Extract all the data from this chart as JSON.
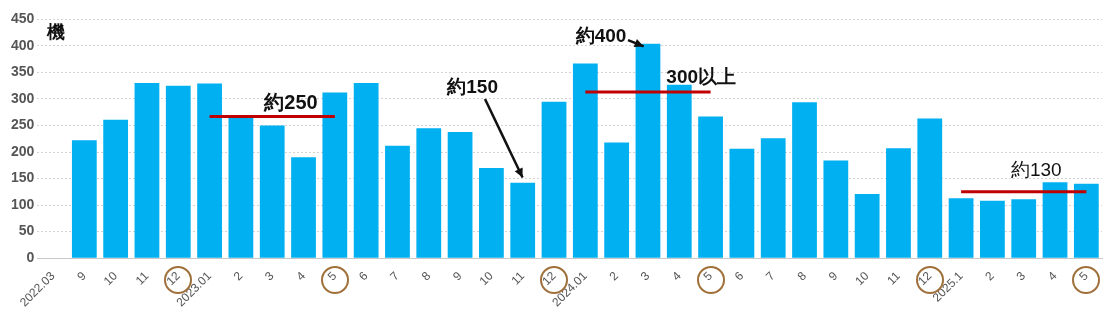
{
  "chart_data": {
    "type": "bar",
    "ylabel": "機",
    "categories": [
      "2022.03",
      "9",
      "10",
      "11",
      "12",
      "2023.01",
      "2",
      "3",
      "4",
      "5",
      "6",
      "7",
      "8",
      "9",
      "10",
      "11",
      "12",
      "2024.01",
      "2",
      "3",
      "4",
      "5",
      "6",
      "7",
      "8",
      "9",
      "10",
      "11",
      "12",
      "2025.1",
      "2",
      "3",
      "4",
      "5"
    ],
    "series": [
      {
        "color": "#00b0f0",
        "values": [
          null,
          222,
          261,
          330,
          325,
          329,
          267,
          250,
          190,
          312,
          330,
          212,
          245,
          238,
          170,
          142,
          295,
          367,
          218,
          404,
          327,
          267,
          206,
          226,
          294,
          184,
          121,
          207,
          263,
          113,
          108,
          111,
          143,
          140
        ]
      },
      {
        "type": "line",
        "color": "#c00000",
        "values": [
          null,
          null,
          null,
          null,
          null,
          267,
          267,
          267,
          267,
          267,
          null,
          null,
          null,
          null,
          null,
          null,
          null,
          null,
          null,
          null,
          null,
          null,
          null,
          null,
          null,
          null,
          null,
          null,
          null,
          null,
          null,
          null,
          null,
          null
        ]
      },
      {
        "type": "line",
        "color": "#c00000",
        "values": [
          null,
          null,
          null,
          null,
          null,
          null,
          null,
          null,
          null,
          null,
          null,
          null,
          null,
          null,
          null,
          null,
          null,
          313,
          313,
          313,
          313,
          313,
          null,
          null,
          null,
          null,
          null,
          null,
          null,
          null,
          null,
          null,
          null,
          null
        ]
      },
      {
        "type": "line",
        "color": "#c00000",
        "values": [
          null,
          null,
          null,
          null,
          null,
          null,
          null,
          null,
          null,
          null,
          null,
          null,
          null,
          null,
          null,
          null,
          null,
          null,
          null,
          null,
          null,
          null,
          null,
          null,
          null,
          null,
          null,
          null,
          null,
          125,
          125,
          125,
          125,
          125
        ]
      }
    ],
    "annotations": [
      "約250",
      "約150",
      "約400",
      "300以上",
      "約130"
    ],
    "ylim": [
      0,
      450
    ],
    "yticks": [
      0,
      50,
      100,
      150,
      200,
      250,
      300,
      350,
      400,
      450
    ],
    "grid": "y",
    "legend": false,
    "marker": "none",
    "line_style": "solid"
  }
}
